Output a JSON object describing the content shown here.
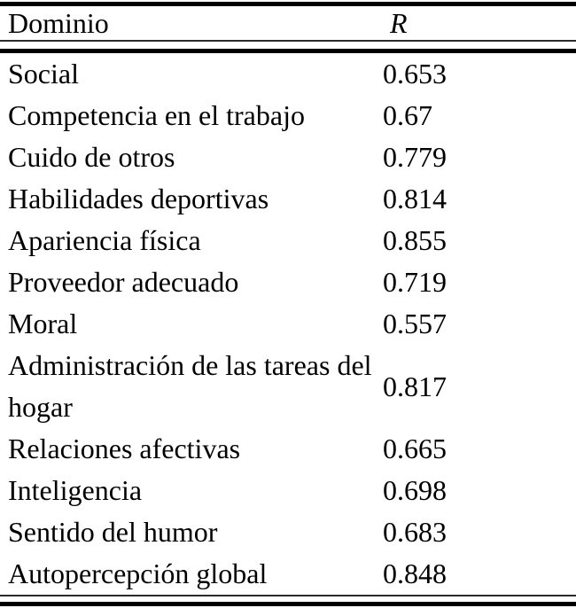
{
  "table": {
    "header": {
      "domain_label": "Dominio",
      "r_label": "R"
    },
    "rows": [
      {
        "domain": "Social",
        "r": "0.653"
      },
      {
        "domain": "Competencia en el trabajo",
        "r": "0.67"
      },
      {
        "domain": "Cuido de otros",
        "r": "0.779"
      },
      {
        "domain": "Habilidades deportivas",
        "r": "0.814"
      },
      {
        "domain": "Apariencia física",
        "r": "0.855"
      },
      {
        "domain": "Proveedor adecuado",
        "r": "0.719"
      },
      {
        "domain": "Moral",
        "r": "0.557"
      },
      {
        "domain": "Administración de las tareas del hogar",
        "r": "0.817"
      },
      {
        "domain": "Relaciones afectivas",
        "r": "0.665"
      },
      {
        "domain": "Inteligencia",
        "r": "0.698"
      },
      {
        "domain": "Sentido del humor",
        "r": "0.683"
      },
      {
        "domain": "Autopercepción global",
        "r": "0.848"
      }
    ],
    "style": {
      "text_color": "#000000",
      "rule_color": "#000000",
      "background": "#ffffff"
    }
  }
}
